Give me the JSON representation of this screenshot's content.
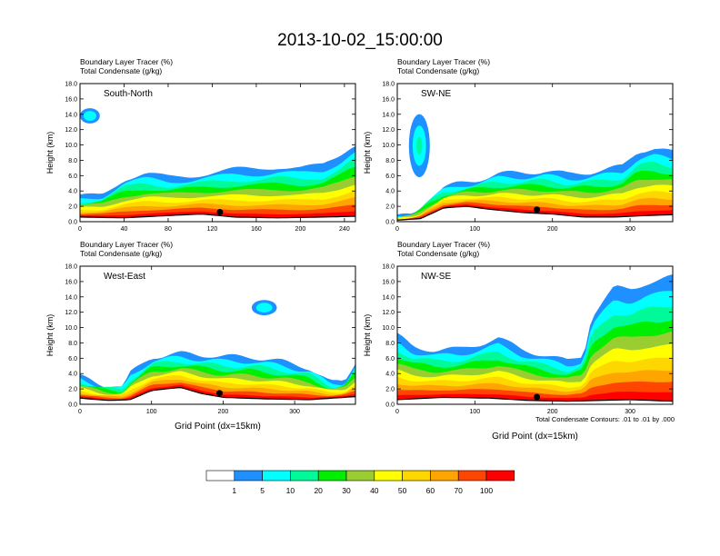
{
  "title": "2013-10-02_15:00:00",
  "colorbar": {
    "colors": [
      "#ffffff",
      "#1e90ff",
      "#00ffff",
      "#00fa9a",
      "#00ee00",
      "#9acd32",
      "#ffff00",
      "#ffd700",
      "#ffa500",
      "#ff4500",
      "#ff0000"
    ],
    "labels": [
      "1",
      "5",
      "10",
      "20",
      "30",
      "40",
      "50",
      "60",
      "70",
      "100"
    ]
  },
  "contour_note": "Total Condensate Contours: .01 to .01 by .000",
  "chart_data": [
    {
      "type": "heatmap",
      "subtitle_line1": "Boundary Layer Tracer   (%)",
      "subtitle_line2": "Total Condensate   (g/kg)",
      "panel_label": "South-North",
      "ylabel": "Height (km)",
      "xlabel": "",
      "xlim": [
        0,
        250
      ],
      "ylim": [
        0,
        18
      ],
      "xticks": [
        "0",
        "40",
        "80",
        "120",
        "160",
        "200",
        "240"
      ],
      "yticks": [
        "0.0",
        "2.0",
        "4.0",
        "6.0",
        "8.0",
        "10.0",
        "12.0",
        "14.0",
        "16.0",
        "18.0"
      ],
      "marker_x": 127,
      "tracer_top_km": [
        [
          0,
          3.2
        ],
        [
          20,
          3.6
        ],
        [
          40,
          5.6
        ],
        [
          60,
          6.2
        ],
        [
          80,
          5.8
        ],
        [
          100,
          6.0
        ],
        [
          120,
          6.4
        ],
        [
          140,
          6.8
        ],
        [
          160,
          6.9
        ],
        [
          180,
          7.2
        ],
        [
          200,
          7.0
        ],
        [
          220,
          7.3
        ],
        [
          235,
          8.6
        ],
        [
          245,
          9.8
        ],
        [
          250,
          10.2
        ]
      ],
      "aloft_patches": [
        {
          "x": [
            0,
            18
          ],
          "y": [
            12.8,
            14.8
          ],
          "level": 1
        }
      ],
      "terrain_km": [
        [
          0,
          0.6
        ],
        [
          40,
          0.5
        ],
        [
          80,
          0.8
        ],
        [
          110,
          1.0
        ],
        [
          140,
          0.6
        ],
        [
          180,
          0.5
        ],
        [
          220,
          0.6
        ],
        [
          250,
          0.7
        ]
      ]
    },
    {
      "type": "heatmap",
      "subtitle_line1": "Boundary Layer Tracer   (%)",
      "subtitle_line2": "Total Condensate   (g/kg)",
      "panel_label": "SW-NE",
      "ylabel": "Height (km)",
      "xlabel": "",
      "xlim": [
        0,
        355
      ],
      "ylim": [
        0,
        18
      ],
      "xticks": [
        "0",
        "100",
        "200",
        "300"
      ],
      "yticks": [
        "0.0",
        "2.0",
        "4.0",
        "6.0",
        "8.0",
        "10.0",
        "12.0",
        "14.0",
        "16.0",
        "18.0"
      ],
      "marker_x": 180,
      "tracer_top_km": [
        [
          0,
          0.6
        ],
        [
          20,
          1.0
        ],
        [
          40,
          3.0
        ],
        [
          60,
          4.4
        ],
        [
          80,
          5.0
        ],
        [
          100,
          5.4
        ],
        [
          130,
          6.2
        ],
        [
          160,
          6.4
        ],
        [
          190,
          6.6
        ],
        [
          220,
          6.2
        ],
        [
          250,
          6.5
        ],
        [
          270,
          6.8
        ],
        [
          290,
          7.2
        ],
        [
          310,
          9.2
        ],
        [
          330,
          9.6
        ],
        [
          355,
          9.0
        ]
      ],
      "aloft_patches": [
        {
          "x": [
            15,
            42
          ],
          "y": [
            5.8,
            14.0
          ],
          "level": 3
        }
      ],
      "terrain_km": [
        [
          0,
          0.2
        ],
        [
          30,
          0.4
        ],
        [
          60,
          1.8
        ],
        [
          90,
          2.0
        ],
        [
          120,
          1.6
        ],
        [
          160,
          1.2
        ],
        [
          200,
          1.0
        ],
        [
          240,
          0.6
        ],
        [
          280,
          0.6
        ],
        [
          320,
          0.8
        ],
        [
          355,
          0.9
        ]
      ]
    },
    {
      "type": "heatmap",
      "subtitle_line1": "Boundary Layer Tracer   (%)",
      "subtitle_line2": "Total Condensate   (g/kg)",
      "panel_label": "West-East",
      "ylabel": "Height (km)",
      "xlabel": "Grid Point (dx=15km)",
      "xlim": [
        0,
        385
      ],
      "ylim": [
        0,
        18
      ],
      "xticks": [
        "0",
        "100",
        "200",
        "300"
      ],
      "yticks": [
        "0.0",
        "2.0",
        "4.0",
        "6.0",
        "8.0",
        "10.0",
        "12.0",
        "14.0",
        "16.0",
        "18.0"
      ],
      "marker_x": 195,
      "tracer_top_km": [
        [
          0,
          3.6
        ],
        [
          30,
          2.6
        ],
        [
          60,
          2.2
        ],
        [
          70,
          4.0
        ],
        [
          100,
          6.2
        ],
        [
          140,
          6.6
        ],
        [
          180,
          6.4
        ],
        [
          200,
          6.2
        ],
        [
          240,
          6.2
        ],
        [
          280,
          5.6
        ],
        [
          320,
          4.8
        ],
        [
          350,
          2.8
        ],
        [
          370,
          3.0
        ],
        [
          385,
          5.6
        ]
      ],
      "aloft_patches": [
        {
          "x": [
            240,
            275
          ],
          "y": [
            11.6,
            13.6
          ],
          "level": 1
        }
      ],
      "terrain_km": [
        [
          0,
          0.8
        ],
        [
          40,
          0.5
        ],
        [
          70,
          0.6
        ],
        [
          100,
          1.8
        ],
        [
          140,
          2.2
        ],
        [
          170,
          1.4
        ],
        [
          200,
          0.9
        ],
        [
          260,
          0.7
        ],
        [
          320,
          0.6
        ],
        [
          385,
          1.0
        ]
      ]
    },
    {
      "type": "heatmap",
      "subtitle_line1": "Boundary Layer Tracer   (%)",
      "subtitle_line2": "Total Condensate   (g/kg)",
      "panel_label": "NW-SE",
      "ylabel": "Height (km)",
      "xlabel": "Grid Point (dx=15km)",
      "xlim": [
        0,
        355
      ],
      "ylim": [
        0,
        18
      ],
      "xticks": [
        "0",
        "100",
        "200",
        "300"
      ],
      "yticks": [
        "0.0",
        "2.0",
        "4.0",
        "6.0",
        "8.0",
        "10.0",
        "12.0",
        "14.0",
        "16.0",
        "18.0"
      ],
      "marker_x": 180,
      "tracer_top_km": [
        [
          0,
          9.0
        ],
        [
          20,
          7.6
        ],
        [
          50,
          7.0
        ],
        [
          80,
          7.2
        ],
        [
          110,
          8.0
        ],
        [
          130,
          8.6
        ],
        [
          160,
          7.2
        ],
        [
          190,
          6.4
        ],
        [
          220,
          5.6
        ],
        [
          240,
          6.4
        ],
        [
          250,
          11.4
        ],
        [
          265,
          13.4
        ],
        [
          280,
          15.2
        ],
        [
          300,
          15.0
        ],
        [
          320,
          15.8
        ],
        [
          340,
          16.2
        ],
        [
          355,
          16.6
        ]
      ],
      "aloft_patches": [],
      "terrain_km": [
        [
          0,
          0.6
        ],
        [
          60,
          0.9
        ],
        [
          120,
          0.8
        ],
        [
          170,
          0.5
        ],
        [
          220,
          0.4
        ],
        [
          260,
          0.5
        ],
        [
          300,
          0.6
        ],
        [
          355,
          0.4
        ]
      ]
    }
  ]
}
